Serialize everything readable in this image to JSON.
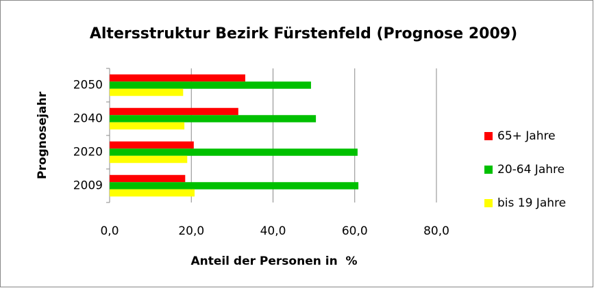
{
  "chart_data": {
    "type": "bar",
    "orientation": "horizontal",
    "title": "Altersstruktur Bezirk Fürstenfeld (Prognose 2009)",
    "x_label": "Anteil der Personen in  %",
    "y_label": "Prognosejahr",
    "categories": [
      "2009",
      "2020",
      "2040",
      "2050"
    ],
    "series": [
      {
        "name": "65+ Jahre",
        "color": "#ff0000",
        "values": [
          18.5,
          20.6,
          31.5,
          33.2
        ]
      },
      {
        "name": "20-64 Jahre",
        "color": "#00c000",
        "values": [
          60.9,
          60.7,
          50.5,
          49.3
        ]
      },
      {
        "name": "bis 19 Jahre",
        "color": "#ffff00",
        "values": [
          20.8,
          19.0,
          18.3,
          18.0
        ]
      }
    ],
    "xlim": [
      0,
      80
    ],
    "xticks": [
      {
        "value": 0,
        "label": "0,0"
      },
      {
        "value": 20,
        "label": "20,0"
      },
      {
        "value": 40,
        "label": "40,0"
      },
      {
        "value": 60,
        "label": "60,0"
      },
      {
        "value": 80,
        "label": "80,0"
      }
    ],
    "grid": true,
    "legend": "right"
  }
}
